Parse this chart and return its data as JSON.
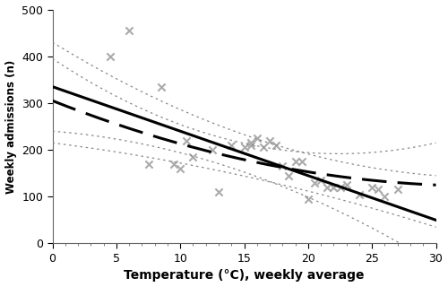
{
  "xlabel": "Temperature (°C), weekly average",
  "ylabel": "Weekly admissions (n)",
  "xlim": [
    0,
    30
  ],
  "ylim": [
    0,
    500
  ],
  "xticks": [
    0,
    5,
    10,
    15,
    20,
    25,
    30
  ],
  "yticks": [
    0,
    100,
    200,
    300,
    400,
    500
  ],
  "scatter_x": [
    4.5,
    6.0,
    7.5,
    8.5,
    9.5,
    10.0,
    10.5,
    11.0,
    12.5,
    13.0,
    14.0,
    15.0,
    15.5,
    15.5,
    16.0,
    16.5,
    17.0,
    17.5,
    18.0,
    18.5,
    19.0,
    19.5,
    20.0,
    20.5,
    21.0,
    21.5,
    22.0,
    22.5,
    23.0,
    24.0,
    25.0,
    25.5,
    26.0,
    27.0
  ],
  "scatter_y": [
    400,
    455,
    170,
    335,
    170,
    160,
    220,
    185,
    200,
    110,
    210,
    205,
    210,
    215,
    225,
    205,
    220,
    210,
    165,
    145,
    175,
    175,
    95,
    130,
    135,
    120,
    120,
    120,
    125,
    105,
    120,
    115,
    100,
    115
  ],
  "lin_intercept": 335,
  "lin_slope": -9.5,
  "quad_a": 0.16,
  "quad_b": -10.8,
  "quad_c": 305,
  "x_ci_center": 15,
  "lin_ci_min_half": 40,
  "lin_ci_edge_factor": 55,
  "quad_ci_min_half": 35,
  "quad_ci_edge_factor": 55,
  "marker_color": "#aaaaaa",
  "line_color": "#000000",
  "ci_color": "#888888",
  "background_color": "#ffffff"
}
